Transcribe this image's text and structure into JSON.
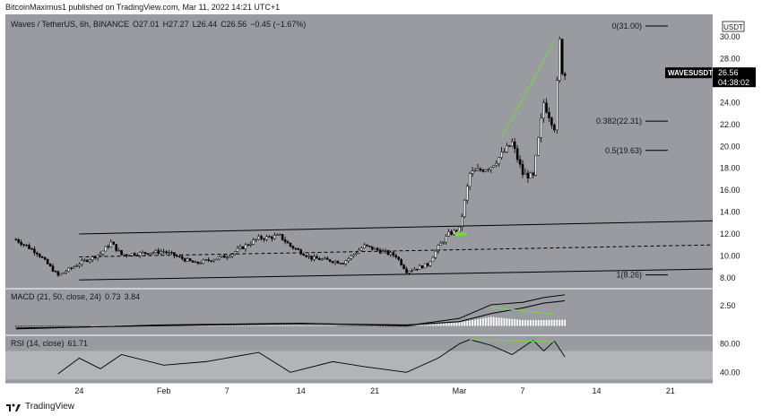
{
  "header": {
    "publisher_line": "BitcoinMaximus1 published on TradingView.com, Mar 11, 2022 14:21 UTC+1"
  },
  "footer": {
    "brand": "TradingView"
  },
  "colors": {
    "panel_bg": "#9a9ba0",
    "candle_up": "#ffffff",
    "candle_down": "#000000",
    "wick": "#000000",
    "green_annotation": "#7ccf4a",
    "rsi_band": "#b3b4b8",
    "axis_text": "#131722"
  },
  "legend": {
    "symbol": "Waves / TetherUS, 6h, BINANCE",
    "o": "O27.01",
    "h": "H27.27",
    "l": "L26.44",
    "c": "C26.56",
    "change": "−0.45 (−1.67%)"
  },
  "price_badge": {
    "ticker": "WAVESUSDT",
    "price": "26.56",
    "countdown": "04:38:02"
  },
  "currency_label": "USDT",
  "chart_data": [
    {
      "type": "candlestick",
      "panel": "price",
      "title": "Waves / TetherUS, 6h, BINANCE",
      "ylim": [
        7.0,
        31.9
      ],
      "y_ticks": [
        8,
        10,
        12,
        14,
        16,
        18,
        20,
        22,
        24,
        26,
        28,
        30
      ],
      "y_tick_labels": [
        "8.00",
        "10.00",
        "12.00",
        "14.00",
        "16.00",
        "18.00",
        "20.00",
        "22.00",
        "24.00",
        "26.00",
        "28.00",
        "30.00"
      ],
      "x_ticks": [
        "24",
        "Feb",
        "7",
        "14",
        "21",
        "Mar",
        "7",
        "14",
        "21"
      ],
      "x_tick_dates": [
        "2022-01-24",
        "2022-02-01",
        "2022-02-07",
        "2022-02-14",
        "2022-02-21",
        "2022-03-01",
        "2022-03-07",
        "2022-03-14",
        "2022-03-21"
      ],
      "x_range": [
        "2022-01-17",
        "2022-03-25"
      ],
      "candles_approx_key_prices": {
        "start": "2022-01-18",
        "end": "2022-03-11",
        "points": [
          [
            "2022-01-18",
            11.5
          ],
          [
            "2022-01-20",
            10.3
          ],
          [
            "2022-01-22",
            8.2
          ],
          [
            "2022-01-24",
            9.3
          ],
          [
            "2022-01-26",
            10.2
          ],
          [
            "2022-01-27",
            11.2
          ],
          [
            "2022-01-28",
            10.1
          ],
          [
            "2022-02-01",
            10.4
          ],
          [
            "2022-02-04",
            9.3
          ],
          [
            "2022-02-07",
            10.0
          ],
          [
            "2022-02-10",
            11.6
          ],
          [
            "2022-02-12",
            11.8
          ],
          [
            "2022-02-13",
            10.9
          ],
          [
            "2022-02-15",
            9.8
          ],
          [
            "2022-02-18",
            9.4
          ],
          [
            "2022-02-20",
            10.9
          ],
          [
            "2022-02-23",
            10.0
          ],
          [
            "2022-02-24",
            8.6
          ],
          [
            "2022-02-26",
            9.2
          ],
          [
            "2022-02-27",
            10.8
          ],
          [
            "2022-02-28",
            12.0
          ],
          [
            "2022-03-01",
            12.4
          ],
          [
            "2022-03-02",
            17.5
          ],
          [
            "2022-03-04",
            18.2
          ],
          [
            "2022-03-06",
            20.3
          ],
          [
            "2022-03-07",
            17.5
          ],
          [
            "2022-03-08",
            17.2
          ],
          [
            "2022-03-09",
            24.0
          ],
          [
            "2022-03-10",
            21.8
          ],
          [
            "2022-03-10T12",
            29.5
          ],
          [
            "2022-03-10T18",
            27.0
          ],
          [
            "2022-03-11",
            26.56
          ]
        ]
      },
      "channel": {
        "upper": [
          [
            "2022-01-24",
            12.0
          ],
          [
            "2022-03-25",
            13.2
          ]
        ],
        "middle": [
          [
            "2022-01-24",
            9.9
          ],
          [
            "2022-03-25",
            11.0
          ]
        ],
        "lower": [
          [
            "2022-01-24",
            7.8
          ],
          [
            "2022-03-25",
            8.8
          ]
        ]
      },
      "fibonacci": [
        {
          "label": "0(31.00)",
          "value": 31.0
        },
        {
          "label": "0.382(22.31)",
          "value": 22.31
        },
        {
          "label": "0.5(19.63)",
          "value": 19.63
        },
        {
          "label": "1(8.26)",
          "value": 8.26
        }
      ],
      "annotations": [
        {
          "type": "trendline",
          "color": "green",
          "from": [
            "2022-03-05",
            20.8
          ],
          "to": [
            "2022-03-10",
            29.6
          ]
        },
        {
          "type": "arrow",
          "color": "green",
          "at": [
            "2022-03-01",
            12.0
          ]
        }
      ]
    },
    {
      "type": "line",
      "panel": "macd",
      "title": "MACD (21, 50, close, 24)",
      "values_label": [
        "0.73",
        "3.84"
      ],
      "y_ticks": [
        2.5
      ],
      "y_tick_labels": [
        "2.50"
      ],
      "ylim": [
        -1.2,
        4.6
      ],
      "series": [
        {
          "name": "MACD",
          "points": [
            [
              "2022-01-18",
              -0.4
            ],
            [
              "2022-02-01",
              0.1
            ],
            [
              "2022-02-14",
              0.3
            ],
            [
              "2022-02-24",
              0.0
            ],
            [
              "2022-03-01",
              0.9
            ],
            [
              "2022-03-04",
              2.6
            ],
            [
              "2022-03-07",
              2.9
            ],
            [
              "2022-03-09",
              3.5
            ],
            [
              "2022-03-11",
              3.84
            ]
          ]
        },
        {
          "name": "Signal",
          "points": [
            [
              "2022-01-18",
              -0.3
            ],
            [
              "2022-02-01",
              0.0
            ],
            [
              "2022-02-14",
              0.25
            ],
            [
              "2022-02-24",
              0.1
            ],
            [
              "2022-03-01",
              0.5
            ],
            [
              "2022-03-04",
              1.5
            ],
            [
              "2022-03-07",
              2.2
            ],
            [
              "2022-03-09",
              2.8
            ],
            [
              "2022-03-11",
              3.1
            ]
          ]
        }
      ],
      "annotations": [
        {
          "type": "trendline",
          "color": "green",
          "from": [
            "2022-03-04",
            2.3
          ],
          "to": [
            "2022-03-10",
            1.4
          ]
        }
      ]
    },
    {
      "type": "line",
      "panel": "rsi",
      "title": "RSI (14, close)",
      "value_label": "61.71",
      "y_ticks": [
        40,
        80
      ],
      "y_tick_labels": [
        "40.00",
        "80.00"
      ],
      "ylim": [
        24,
        92
      ],
      "band": [
        30,
        70
      ],
      "series": [
        {
          "name": "RSI",
          "points": [
            [
              "2022-01-22",
              38
            ],
            [
              "2022-01-24",
              60
            ],
            [
              "2022-01-26",
              45
            ],
            [
              "2022-01-28",
              65
            ],
            [
              "2022-02-01",
              50
            ],
            [
              "2022-02-05",
              55
            ],
            [
              "2022-02-10",
              68
            ],
            [
              "2022-02-13",
              40
            ],
            [
              "2022-02-17",
              55
            ],
            [
              "2022-02-20",
              48
            ],
            [
              "2022-02-24",
              40
            ],
            [
              "2022-02-27",
              60
            ],
            [
              "2022-03-01",
              80
            ],
            [
              "2022-03-02",
              86
            ],
            [
              "2022-03-04",
              78
            ],
            [
              "2022-03-06",
              65
            ],
            [
              "2022-03-08",
              85
            ],
            [
              "2022-03-09",
              70
            ],
            [
              "2022-03-10",
              84
            ],
            [
              "2022-03-11",
              61.71
            ]
          ]
        }
      ],
      "annotations": [
        {
          "type": "trendline",
          "color": "green",
          "from": [
            "2022-03-02",
            86
          ],
          "to": [
            "2022-03-10",
            83
          ]
        }
      ]
    }
  ]
}
